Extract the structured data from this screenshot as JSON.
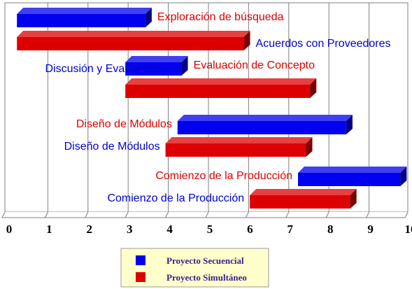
{
  "chart_data": {
    "type": "bar",
    "orientation": "horizontal-gantt",
    "x_ticks": [
      "0",
      "1",
      "2",
      "3",
      "4",
      "5",
      "6",
      "7",
      "8",
      "9",
      "10"
    ],
    "xlim": [
      0,
      10
    ],
    "grid": true,
    "legend_placement": "bottom-center",
    "colors": {
      "Proyecto Secuencial": "#0000ee",
      "Proyecto Simultáneo": "#dd0000",
      "grid": "#7f7f7f",
      "legend_background": "#ffffcc"
    },
    "series": [
      {
        "name": "Proyecto Secuencial",
        "bars": [
          {
            "label": "Exploración de búsqueda",
            "start": 0.3,
            "end": 3.5
          },
          {
            "label": "Evaluación de Concepto",
            "start": 3.0,
            "end": 4.4
          },
          {
            "label": "Diseño de Módulos",
            "start": 4.3,
            "end": 8.5
          },
          {
            "label": "Comienzo de la Producción",
            "start": 7.3,
            "end": 9.85
          }
        ]
      },
      {
        "name": "Proyecto Simultáneo",
        "bars": [
          {
            "label": "Acuerdos con Proveedores",
            "start": 0.3,
            "end": 5.95
          },
          {
            "label": "Discusión y Evaluación",
            "start": 3.0,
            "end": 7.6
          },
          {
            "label": "Diseño de Módulos",
            "start": 4.0,
            "end": 7.5
          },
          {
            "label": "Comienzo de la Producción",
            "start": 6.1,
            "end": 8.6
          }
        ]
      }
    ],
    "bars": [
      {
        "series": 0,
        "index": 0,
        "label": "Exploración de búsqueda",
        "label_side": "right",
        "label_color": "#dd0000"
      },
      {
        "series": 1,
        "index": 0,
        "label": "Acuerdos con Proveedores",
        "label_side": "right",
        "label_color": "#0000cc"
      },
      {
        "series": 0,
        "index": 1,
        "label": "Evaluación de Concepto",
        "label_side": "right",
        "label_color": "#dd0000"
      },
      {
        "series": 1,
        "index": 1,
        "label": "Discusión y Evaluación",
        "label_side": "above-left",
        "label_color": "#0000cc"
      },
      {
        "series": 0,
        "index": 2,
        "label": "Diseño de Módulos",
        "label_side": "left",
        "label_color": "#dd0000"
      },
      {
        "series": 1,
        "index": 2,
        "label": "Diseño de Módulos",
        "label_side": "left",
        "label_color": "#0000cc"
      },
      {
        "series": 0,
        "index": 3,
        "label": "Comienzo de la Producción",
        "label_side": "left",
        "label_color": "#dd0000"
      },
      {
        "series": 1,
        "index": 3,
        "label": "Comienzo de la Producción",
        "label_side": "left",
        "label_color": "#0000cc"
      }
    ]
  }
}
